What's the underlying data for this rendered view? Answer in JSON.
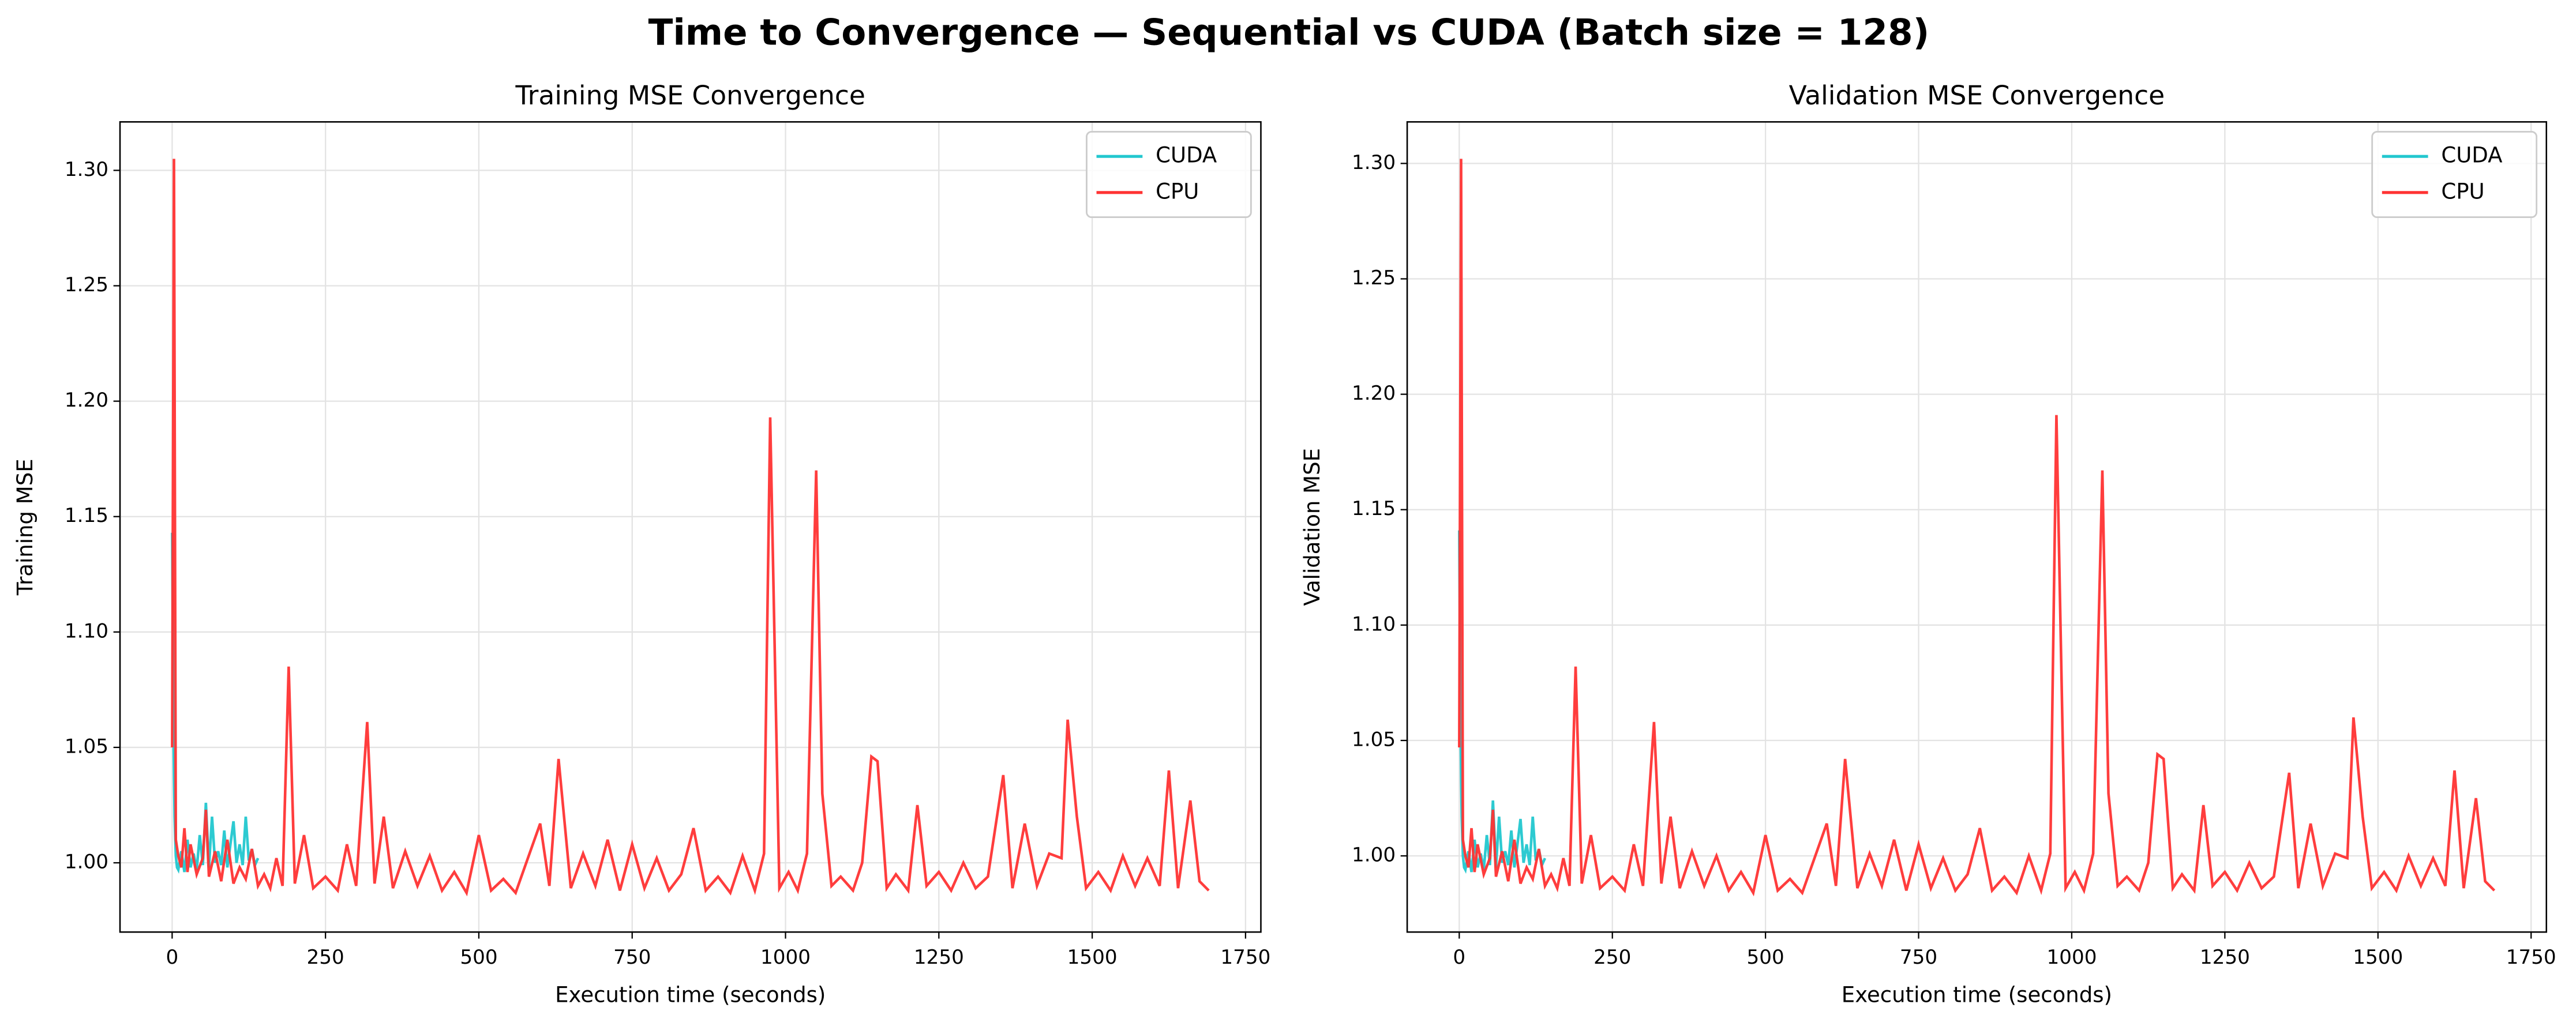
{
  "title": "Time to Convergence — Sequential vs CUDA (Batch size = 128)",
  "chart_data": [
    {
      "type": "line",
      "title": "Training MSE Convergence",
      "x_label": "Execution time (seconds)",
      "y_label": "Training MSE",
      "xlim": [
        -85,
        1775
      ],
      "ylim": [
        0.97,
        1.321
      ],
      "xticks": [
        0,
        250,
        500,
        750,
        1000,
        1250,
        1500,
        1750
      ],
      "yticks": [
        {
          "value": 1.0,
          "label": "1.00"
        },
        1.05,
        {
          "value": 1.1,
          "label": "1.10"
        },
        1.15,
        {
          "value": 1.2,
          "label": "1.20"
        },
        1.25,
        {
          "value": 1.3,
          "label": "1.30"
        }
      ],
      "grid": true,
      "legend": "upper right",
      "series": [
        {
          "name": "CUDA",
          "color": "#22c7cf",
          "x": [
            0,
            2,
            4,
            6,
            8,
            10,
            15,
            20,
            25,
            30,
            35,
            40,
            45,
            50,
            55,
            60,
            65,
            70,
            75,
            80,
            85,
            90,
            95,
            100,
            105,
            110,
            115,
            120,
            125,
            130,
            135,
            140
          ],
          "values": [
            1.143,
            1.06,
            1.02,
            1.003,
            0.998,
            0.997,
            1.005,
            0.996,
            1.01,
            0.998,
            1.004,
            0.997,
            1.012,
            0.999,
            1.026,
            0.998,
            1.02,
            1.0,
            1.005,
            0.999,
            1.014,
            0.998,
            1.008,
            1.018,
            1.0,
            1.008,
            0.999,
            1.02,
            1.001,
            1.006,
            0.999,
            1.002
          ]
        },
        {
          "name": "CPU",
          "color": "#ff3333",
          "x": [
            0,
            3,
            6,
            10,
            15,
            20,
            25,
            30,
            40,
            50,
            55,
            60,
            70,
            80,
            90,
            100,
            110,
            120,
            130,
            140,
            150,
            160,
            170,
            180,
            190,
            200,
            215,
            230,
            250,
            270,
            285,
            300,
            318,
            330,
            345,
            360,
            380,
            400,
            420,
            440,
            460,
            480,
            500,
            520,
            540,
            560,
            580,
            600,
            615,
            630,
            650,
            670,
            690,
            710,
            730,
            750,
            770,
            790,
            810,
            830,
            850,
            870,
            890,
            910,
            930,
            950,
            965,
            975,
            990,
            1005,
            1020,
            1035,
            1050,
            1060,
            1075,
            1090,
            1110,
            1125,
            1140,
            1150,
            1165,
            1180,
            1200,
            1215,
            1230,
            1250,
            1270,
            1290,
            1310,
            1330,
            1355,
            1370,
            1390,
            1410,
            1430,
            1450,
            1460,
            1475,
            1490,
            1510,
            1530,
            1550,
            1570,
            1590,
            1610,
            1625,
            1640,
            1660,
            1675,
            1690
          ],
          "values": [
            1.05,
            1.305,
            1.01,
            1.003,
            0.998,
            1.015,
            0.996,
            1.008,
            0.995,
            1.002,
            1.023,
            0.994,
            1.005,
            0.992,
            1.01,
            0.991,
            0.998,
            0.993,
            1.006,
            0.99,
            0.995,
            0.989,
            1.002,
            0.99,
            1.085,
            0.991,
            1.012,
            0.989,
            0.994,
            0.988,
            1.008,
            0.99,
            1.061,
            0.991,
            1.02,
            0.989,
            1.005,
            0.99,
            1.003,
            0.988,
            0.996,
            0.987,
            1.012,
            0.988,
            0.993,
            0.987,
            1.002,
            1.017,
            0.99,
            1.045,
            0.989,
            1.004,
            0.99,
            1.01,
            0.988,
            1.008,
            0.989,
            1.002,
            0.988,
            0.995,
            1.015,
            0.988,
            0.994,
            0.987,
            1.003,
            0.988,
            1.004,
            1.193,
            0.989,
            0.996,
            0.988,
            1.004,
            1.17,
            1.03,
            0.99,
            0.994,
            0.988,
            1.0,
            1.046,
            1.044,
            0.989,
            0.995,
            0.988,
            1.025,
            0.99,
            0.996,
            0.988,
            1.0,
            0.989,
            0.994,
            1.038,
            0.989,
            1.017,
            0.99,
            1.004,
            1.002,
            1.062,
            1.02,
            0.989,
            0.996,
            0.988,
            1.003,
            0.99,
            1.002,
            0.99,
            1.04,
            0.989,
            1.027,
            0.992,
            0.988
          ]
        }
      ]
    },
    {
      "type": "line",
      "title": "Validation MSE Convergence",
      "x_label": "Execution time (seconds)",
      "y_label": "Validation MSE",
      "xlim": [
        -85,
        1775
      ],
      "ylim": [
        0.967,
        1.318
      ],
      "xticks": [
        0,
        250,
        500,
        750,
        1000,
        1250,
        1500,
        1750
      ],
      "yticks": [
        {
          "value": 1.0,
          "label": "1.00"
        },
        1.05,
        {
          "value": 1.1,
          "label": "1.10"
        },
        1.15,
        {
          "value": 1.2,
          "label": "1.20"
        },
        1.25,
        {
          "value": 1.3,
          "label": "1.30"
        }
      ],
      "grid": true,
      "legend": "upper right",
      "series": [
        {
          "name": "CUDA",
          "color": "#22c7cf",
          "x": [
            0,
            2,
            4,
            6,
            8,
            10,
            15,
            20,
            25,
            30,
            35,
            40,
            45,
            50,
            55,
            60,
            65,
            70,
            75,
            80,
            85,
            90,
            95,
            100,
            105,
            110,
            115,
            120,
            125,
            130,
            135,
            140
          ],
          "values": [
            1.141,
            1.057,
            1.017,
            1.0,
            0.995,
            0.994,
            1.002,
            0.993,
            1.007,
            0.995,
            1.001,
            0.994,
            1.009,
            0.996,
            1.024,
            0.995,
            1.017,
            0.997,
            1.002,
            0.996,
            1.011,
            0.995,
            1.005,
            1.016,
            0.997,
            1.005,
            0.996,
            1.017,
            0.998,
            1.003,
            0.996,
            0.999
          ]
        },
        {
          "name": "CPU",
          "color": "#ff3333",
          "x": [
            0,
            3,
            6,
            10,
            15,
            20,
            25,
            30,
            40,
            50,
            55,
            60,
            70,
            80,
            90,
            100,
            110,
            120,
            130,
            140,
            150,
            160,
            170,
            180,
            190,
            200,
            215,
            230,
            250,
            270,
            285,
            300,
            318,
            330,
            345,
            360,
            380,
            400,
            420,
            440,
            460,
            480,
            500,
            520,
            540,
            560,
            580,
            600,
            615,
            630,
            650,
            670,
            690,
            710,
            730,
            750,
            770,
            790,
            810,
            830,
            850,
            870,
            890,
            910,
            930,
            950,
            965,
            975,
            990,
            1005,
            1020,
            1035,
            1050,
            1060,
            1075,
            1090,
            1110,
            1125,
            1140,
            1150,
            1165,
            1180,
            1200,
            1215,
            1230,
            1250,
            1270,
            1290,
            1310,
            1330,
            1355,
            1370,
            1390,
            1410,
            1430,
            1450,
            1460,
            1475,
            1490,
            1510,
            1530,
            1550,
            1570,
            1590,
            1610,
            1625,
            1640,
            1660,
            1675,
            1690
          ],
          "values": [
            1.047,
            1.302,
            1.007,
            1.0,
            0.995,
            1.012,
            0.993,
            1.005,
            0.992,
            0.999,
            1.02,
            0.991,
            1.002,
            0.989,
            1.007,
            0.988,
            0.995,
            0.99,
            1.003,
            0.987,
            0.992,
            0.986,
            0.999,
            0.987,
            1.082,
            0.988,
            1.009,
            0.986,
            0.991,
            0.985,
            1.005,
            0.987,
            1.058,
            0.988,
            1.017,
            0.986,
            1.002,
            0.987,
            1.0,
            0.985,
            0.993,
            0.984,
            1.009,
            0.985,
            0.99,
            0.984,
            0.999,
            1.014,
            0.987,
            1.042,
            0.986,
            1.001,
            0.987,
            1.007,
            0.985,
            1.005,
            0.986,
            0.999,
            0.985,
            0.992,
            1.012,
            0.985,
            0.991,
            0.984,
            1.0,
            0.985,
            1.001,
            1.191,
            0.986,
            0.993,
            0.985,
            1.001,
            1.167,
            1.027,
            0.987,
            0.991,
            0.985,
            0.997,
            1.044,
            1.042,
            0.986,
            0.992,
            0.985,
            1.022,
            0.987,
            0.993,
            0.985,
            0.997,
            0.986,
            0.991,
            1.036,
            0.986,
            1.014,
            0.987,
            1.001,
            0.999,
            1.06,
            1.017,
            0.986,
            0.993,
            0.985,
            1.0,
            0.987,
            0.999,
            0.987,
            1.037,
            0.986,
            1.025,
            0.989,
            0.985
          ]
        }
      ]
    }
  ]
}
